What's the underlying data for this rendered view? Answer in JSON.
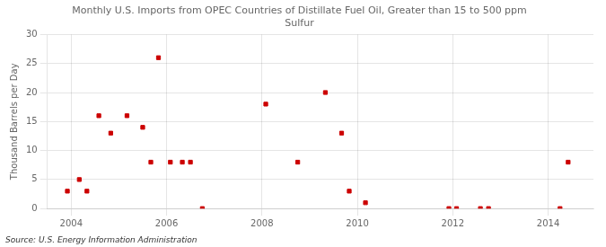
{
  "chart_data": {
    "type": "scatter",
    "title": "Monthly U.S. Imports from OPEC Countries of Distillate Fuel Oil, Greater than 15 to 500 ppm\nSulfur",
    "ylabel": "Thousand Barrels per Day",
    "annotations": [
      "Source: U.S. Energy Information Administration"
    ],
    "color": "#cc0000",
    "marker": "square",
    "grid": true,
    "xlim": [
      2003.5,
      2014.95
    ],
    "xticks": [
      2004,
      2006,
      2008,
      2010,
      2012,
      2014
    ],
    "ylim": [
      0,
      30
    ],
    "yticks": [
      0,
      5,
      10,
      15,
      20,
      25,
      30
    ],
    "x": [
      2003.92,
      2004.17,
      2004.33,
      2004.58,
      2004.83,
      2005.17,
      2005.5,
      2005.67,
      2005.83,
      2006.08,
      2006.33,
      2006.5,
      2006.75,
      2008.08,
      2008.75,
      2009.33,
      2009.67,
      2009.83,
      2010.17,
      2011.92,
      2012.08,
      2012.58,
      2012.75,
      2014.25,
      2014.42
    ],
    "values": [
      3,
      5,
      3,
      16,
      13,
      16,
      14,
      8,
      26,
      8,
      8,
      8,
      0,
      18,
      8,
      20,
      13,
      3,
      1,
      0,
      0,
      0,
      0,
      0,
      8
    ]
  }
}
